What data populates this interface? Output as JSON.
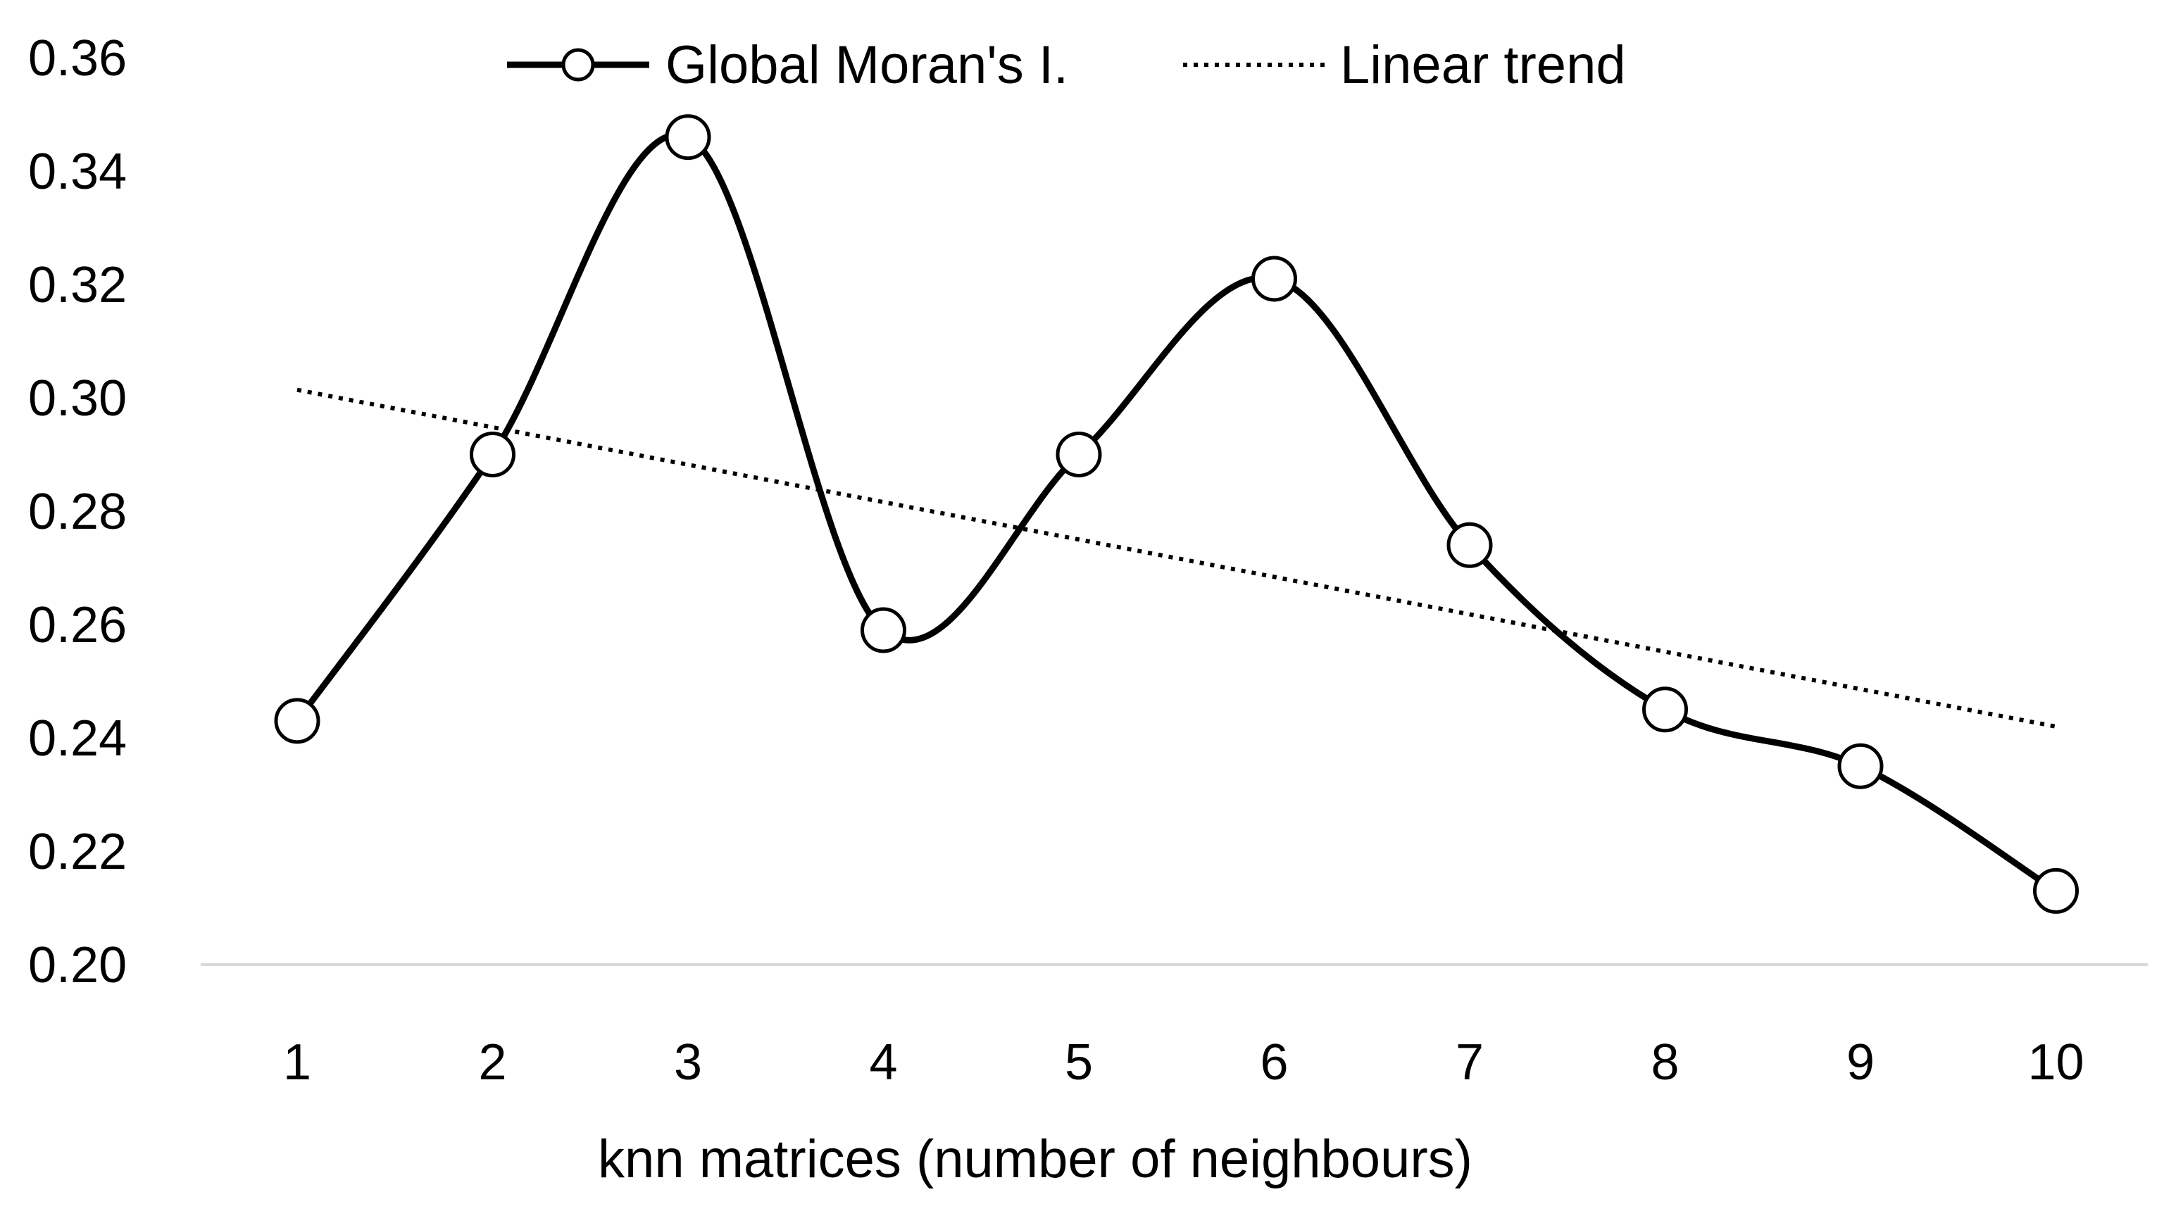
{
  "chart_data": {
    "type": "line",
    "title": "",
    "xlabel": "knn matrices (number of neighbours)",
    "ylabel": "",
    "x": [
      1,
      2,
      3,
      4,
      5,
      6,
      7,
      8,
      9,
      10
    ],
    "ylim": [
      0.2,
      0.36
    ],
    "yticks": [
      "0.20",
      "0.22",
      "0.24",
      "0.26",
      "0.28",
      "0.30",
      "0.32",
      "0.34",
      "0.36"
    ],
    "series": [
      {
        "name": "Global Moran's I.",
        "style": "smooth-solid-with-circle-markers",
        "color": "#000000",
        "values": [
          0.243,
          0.29,
          0.346,
          0.259,
          0.29,
          0.321,
          0.274,
          0.245,
          0.235,
          0.213
        ]
      },
      {
        "name": "Linear trend",
        "style": "dotted",
        "color": "#000000",
        "values": [
          0.3014,
          0.2948,
          0.2882,
          0.2816,
          0.275,
          0.2684,
          0.2618,
          0.2552,
          0.2486,
          0.242
        ]
      }
    ],
    "grid": false,
    "legend": "top-center"
  }
}
